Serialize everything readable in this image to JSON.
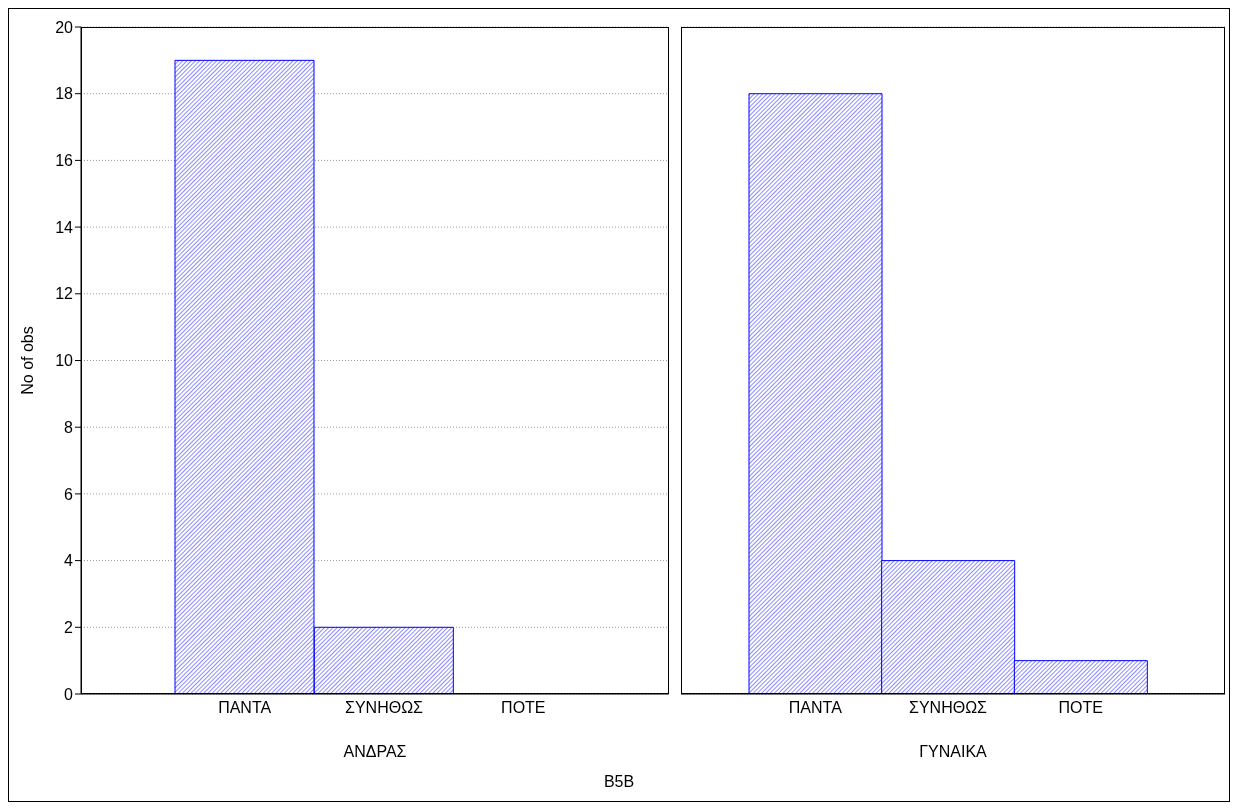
{
  "chart_data": [
    {
      "type": "bar",
      "categories": [
        "ΠΑΝΤΑ",
        "ΣΥΝΗΘΩΣ",
        "ΠΟΤΕ"
      ],
      "values": [
        19,
        2,
        0
      ],
      "color": "#0000ff",
      "xlabel": "ΑΝΔΡΑΣ",
      "ylabel": "No of obs",
      "ylim": [
        0,
        20
      ],
      "yticks": [
        0,
        2,
        4,
        6,
        8,
        10,
        12,
        14,
        16,
        18,
        20
      ],
      "grid": "y",
      "annotations": [
        "B5B"
      ]
    },
    {
      "type": "bar",
      "categories": [
        "ΠΑΝΤΑ",
        "ΣΥΝΗΘΩΣ",
        "ΠΟΤΕ"
      ],
      "values": [
        18,
        4,
        1
      ],
      "color": "#0000ff",
      "xlabel": "ΓΥΝΑΙΚΑ",
      "ylim": [
        0,
        20
      ],
      "yticks": [
        0,
        2,
        4,
        6,
        8,
        10,
        12,
        14,
        16,
        18,
        20
      ],
      "grid": "y",
      "tick_labels": "x"
    }
  ]
}
